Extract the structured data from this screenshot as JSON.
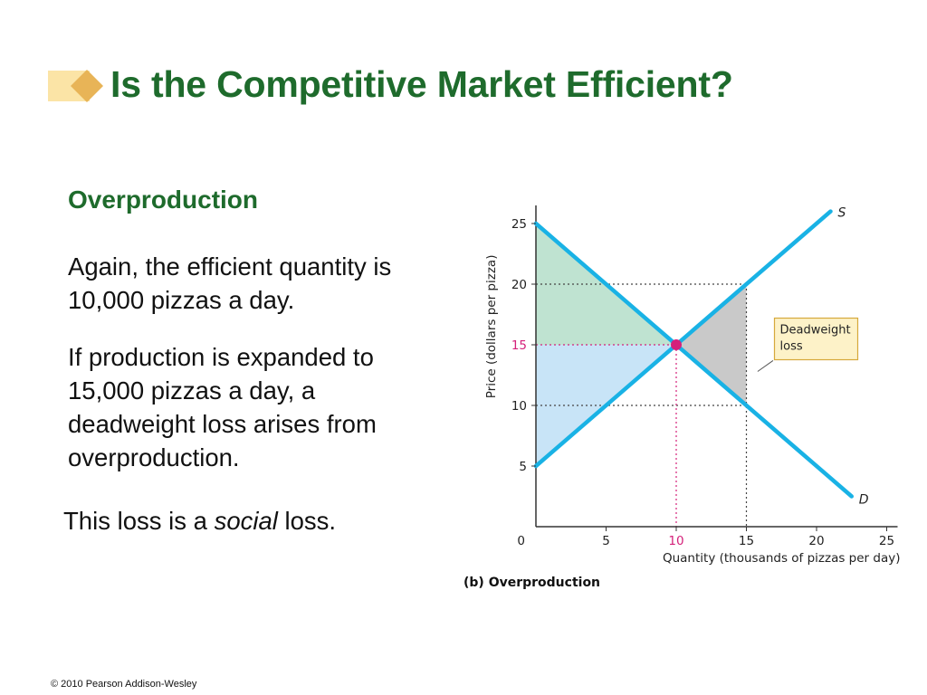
{
  "slide": {
    "title": "Is the Competitive Market Efficient?",
    "heading": "Overproduction",
    "paragraph1": "Again, the efficient quantity is 10,000 pizzas a day.",
    "paragraph2": "If production is expanded to 15,000 pizzas a day, a deadweight loss arises from overproduction.",
    "paragraph3": {
      "before": "This loss is a ",
      "emphasis": "social",
      "after": " loss."
    },
    "footer": "© 2010 Pearson Addison-Wesley"
  },
  "colors": {
    "title_green": "#1e6b2c",
    "curve_blue": "#19b2e5",
    "consumer_surplus": "#bfe3d1",
    "producer_surplus": "#c8e4f7",
    "deadweight_loss": "#c9c9c9",
    "equilibrium_pink": "#d4217a",
    "callout_fill": "#fdf2c8",
    "callout_border": "#d6a93b"
  },
  "chart_data": {
    "type": "line",
    "caption": "(b) Overproduction",
    "xlabel": "Quantity (thousands of pizzas per day)",
    "ylabel": "Price (dollars per pizza)",
    "xlim": [
      0,
      25
    ],
    "ylim": [
      0,
      25
    ],
    "xticks": [
      5,
      10,
      15,
      20,
      25
    ],
    "yticks": [
      5,
      10,
      15,
      20,
      25
    ],
    "origin_label": "0",
    "series": [
      {
        "name": "D",
        "x": [
          0,
          22.5
        ],
        "y": [
          25,
          2.5
        ]
      },
      {
        "name": "S",
        "x": [
          0,
          21
        ],
        "y": [
          5,
          26
        ]
      }
    ],
    "equilibrium": {
      "x": 10,
      "y": 15
    },
    "overproduction_quantity": 15,
    "price_supply_at_overproduction": 20,
    "price_demand_at_overproduction": 10,
    "annotation": "Deadweight loss",
    "annotation_lines": [
      "Deadweight",
      "loss"
    ],
    "grid": false
  }
}
